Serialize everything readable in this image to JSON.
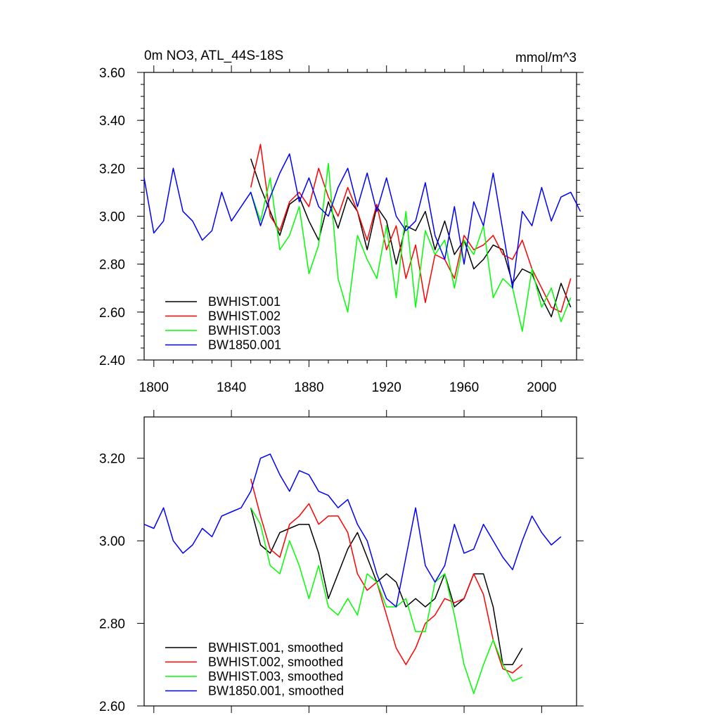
{
  "chart_data": [
    {
      "type": "line",
      "title": "0m NO3, ATL_44S-18S",
      "units": "mmol/m^3",
      "xlabel": "",
      "ylabel": "",
      "xlim": [
        1795,
        2018
      ],
      "ylim": [
        2.4,
        3.6
      ],
      "x_ticks": [
        1800,
        1840,
        1880,
        1920,
        1960,
        2000
      ],
      "x_tick_labels": [
        "1800",
        "1840",
        "1880",
        "1920",
        "1960",
        "2000"
      ],
      "y_ticks": [
        2.4,
        2.6,
        2.8,
        3.0,
        3.2,
        3.4,
        3.6
      ],
      "y_tick_labels": [
        "2.40",
        "2.60",
        "2.80",
        "3.00",
        "3.20",
        "3.40",
        "3.60"
      ],
      "legend_position": "bottom-left",
      "series": [
        {
          "name": "BWHIST.001",
          "color": "#000000",
          "x_start": 1850,
          "x_step": 5,
          "values": [
            3.24,
            3.12,
            3.02,
            2.92,
            3.05,
            3.08,
            2.98,
            2.9,
            3.06,
            2.95,
            3.08,
            3.02,
            2.86,
            3.04,
            2.98,
            2.8,
            2.96,
            2.94,
            3.02,
            2.86,
            2.98,
            2.84,
            2.9,
            2.78,
            2.82,
            2.88,
            2.86,
            2.72,
            2.78,
            2.76,
            2.66,
            2.58,
            2.72,
            2.62
          ]
        },
        {
          "name": "BWHIST.002",
          "color": "#ff0000",
          "x_start": 1850,
          "x_step": 5,
          "values": [
            3.12,
            3.3,
            3.0,
            2.94,
            3.06,
            3.1,
            3.04,
            3.2,
            3.08,
            3.0,
            3.12,
            3.02,
            2.9,
            3.05,
            2.86,
            2.96,
            2.74,
            2.88,
            2.64,
            2.84,
            2.82,
            2.74,
            2.92,
            2.86,
            2.88,
            2.92,
            2.84,
            2.82,
            2.9,
            2.78,
            2.7,
            2.62,
            2.6,
            2.74
          ]
        },
        {
          "name": "BWHIST.003",
          "color": "#00ff00",
          "x_start": 1850,
          "x_step": 5,
          "values": [
            3.1,
            2.98,
            3.16,
            2.86,
            2.92,
            3.04,
            2.76,
            2.88,
            3.22,
            2.74,
            2.6,
            2.92,
            2.82,
            2.74,
            2.96,
            2.66,
            3.02,
            2.62,
            2.94,
            2.84,
            2.9,
            2.7,
            2.9,
            2.84,
            2.96,
            2.66,
            2.74,
            2.7,
            2.52,
            2.78,
            2.62,
            2.7,
            2.56,
            2.66
          ]
        },
        {
          "name": "BW1850.001",
          "color": "#0000ff",
          "x_start": 1795,
          "x_step": 5,
          "values": [
            3.16,
            2.93,
            2.98,
            3.2,
            3.02,
            2.98,
            2.9,
            2.94,
            3.1,
            2.98,
            3.04,
            3.1,
            2.96,
            3.08,
            3.18,
            3.26,
            3.06,
            3.16,
            3.04,
            3.0,
            3.12,
            3.2,
            3.04,
            3.18,
            3.02,
            3.16,
            3.0,
            2.94,
            2.98,
            3.14,
            2.92,
            2.82,
            3.04,
            2.8,
            3.06,
            2.96,
            3.18,
            2.94,
            2.7,
            3.02,
            2.96,
            3.12,
            2.98,
            3.08,
            3.1,
            3.02
          ]
        }
      ]
    },
    {
      "type": "line",
      "title": "",
      "xlabel": "",
      "ylabel": "",
      "xlim": [
        1795,
        2018
      ],
      "ylim": [
        2.6,
        3.3
      ],
      "x_ticks": [
        1800,
        1840,
        1880,
        1920,
        1960,
        2000
      ],
      "y_ticks": [
        2.6,
        2.8,
        3.0,
        3.2
      ],
      "y_tick_labels": [
        "2.60",
        "2.80",
        "3.00",
        "3.20"
      ],
      "legend_position": "bottom-left",
      "series": [
        {
          "name": "BWHIST.001, smoothed",
          "color": "#000000",
          "x_start": 1850,
          "x_step": 5,
          "values": [
            3.08,
            2.99,
            2.97,
            3.02,
            3.03,
            3.04,
            3.04,
            2.97,
            2.86,
            2.92,
            2.98,
            3.02,
            2.96,
            2.9,
            2.92,
            2.9,
            2.84,
            2.86,
            2.84,
            2.86,
            2.92,
            2.84,
            2.86,
            2.92,
            2.92,
            2.84,
            2.7,
            2.7,
            2.74
          ]
        },
        {
          "name": "BWHIST.002, smoothed",
          "color": "#ff0000",
          "x_start": 1850,
          "x_step": 5,
          "values": [
            3.15,
            3.06,
            2.98,
            2.96,
            3.04,
            3.06,
            3.09,
            3.04,
            3.06,
            3.06,
            3.02,
            2.92,
            2.88,
            2.9,
            2.82,
            2.74,
            2.7,
            2.74,
            2.8,
            2.82,
            2.86,
            2.85,
            2.86,
            2.92,
            2.87,
            2.76,
            2.69,
            2.68,
            2.7
          ]
        },
        {
          "name": "BWHIST.003, smoothed",
          "color": "#00ff00",
          "x_start": 1850,
          "x_step": 5,
          "values": [
            3.08,
            3.04,
            2.94,
            2.92,
            3.0,
            2.94,
            2.86,
            2.94,
            2.84,
            2.82,
            2.86,
            2.82,
            2.92,
            2.9,
            2.84,
            2.84,
            2.86,
            2.78,
            2.78,
            2.9,
            2.92,
            2.82,
            2.7,
            2.63,
            2.7,
            2.76,
            2.7,
            2.66,
            2.67
          ]
        },
        {
          "name": "BW1850.001, smoothed",
          "color": "#0000ff",
          "x_start": 1795,
          "x_step": 5,
          "values": [
            3.04,
            3.03,
            3.08,
            3.0,
            2.97,
            2.99,
            3.03,
            3.01,
            3.06,
            3.07,
            3.08,
            3.12,
            3.2,
            3.21,
            3.16,
            3.12,
            3.17,
            3.16,
            3.12,
            3.11,
            3.08,
            3.1,
            3.04,
            3.0,
            2.92,
            2.86,
            2.84,
            2.96,
            3.08,
            2.94,
            2.9,
            2.94,
            3.04,
            2.97,
            2.98,
            3.04,
            3.0,
            2.96,
            2.93,
            3.0,
            3.06,
            3.02,
            2.99,
            3.01
          ]
        }
      ]
    }
  ]
}
